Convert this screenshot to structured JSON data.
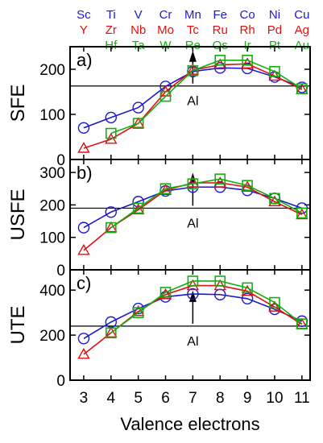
{
  "chart_data": {
    "type": "line",
    "xlabel": "Valence electrons",
    "x": [
      3,
      4,
      5,
      6,
      7,
      8,
      9,
      10,
      11
    ],
    "xlim": [
      2.5,
      11.3
    ],
    "element_rows": [
      {
        "color": "#1a1acc",
        "labels": [
          "Sc",
          "Ti",
          "V",
          "Cr",
          "Mn",
          "Fe",
          "Co",
          "Ni",
          "Cu"
        ]
      },
      {
        "color": "#e01010",
        "labels": [
          "Y",
          "Zr",
          "Nb",
          "Mo",
          "Tc",
          "Ru",
          "Rh",
          "Pd",
          "Ag"
        ]
      },
      {
        "color": "#10b010",
        "labels": [
          "",
          "Hf",
          "Ta",
          "W",
          "Re",
          "Os",
          "Ir",
          "Pt",
          "Au"
        ]
      }
    ],
    "series_styles": [
      {
        "key": "3d",
        "color": "#1a1acc",
        "marker": "circle"
      },
      {
        "key": "4d",
        "color": "#e01010",
        "marker": "triangle"
      },
      {
        "key": "5d",
        "color": "#10b010",
        "marker": "square"
      }
    ],
    "panels": [
      {
        "label": "a)",
        "ylabel": "SFE",
        "ylim": [
          0,
          250
        ],
        "yticks": [
          0,
          100,
          200
        ],
        "reference_y": 163,
        "annotation": {
          "text": "Al",
          "x": 7
        },
        "series": [
          {
            "values": [
              70,
              93,
              115,
              162,
              195,
              203,
              202,
              183,
              160
            ]
          },
          {
            "values": [
              25,
              45,
              80,
              150,
              198,
              210,
              212,
              185,
              155
            ]
          },
          {
            "values": [
              null,
              58,
              80,
              140,
              197,
              220,
              220,
              195,
              157
            ]
          }
        ]
      },
      {
        "label": "b)",
        "ylabel": "USFE",
        "ylim": [
          0,
          340
        ],
        "yticks": [
          0,
          100,
          200,
          300
        ],
        "reference_y": 190,
        "annotation": {
          "text": "Al",
          "x": 7
        },
        "series": [
          {
            "values": [
              130,
              178,
              210,
              243,
              255,
              255,
              245,
              220,
              190
            ]
          },
          {
            "values": [
              60,
              130,
              185,
              245,
              268,
              268,
              255,
              210,
              170
            ]
          },
          {
            "values": [
              null,
              130,
              190,
              250,
              265,
              280,
              260,
              220,
              175
            ]
          }
        ]
      },
      {
        "label": "c)",
        "ylabel": "UTE",
        "ylim": [
          0,
          490
        ],
        "yticks": [
          0,
          200,
          400
        ],
        "reference_y": 240,
        "annotation": {
          "text": "Al",
          "x": 7
        },
        "series": [
          {
            "values": [
              185,
              258,
              318,
              370,
              383,
              380,
              362,
              315,
              262
            ]
          },
          {
            "values": [
              115,
              210,
              305,
              380,
              420,
              420,
              395,
              325,
              248
            ]
          },
          {
            "values": [
              null,
              210,
              300,
              390,
              440,
              440,
              410,
              345,
              250
            ]
          }
        ]
      }
    ]
  }
}
